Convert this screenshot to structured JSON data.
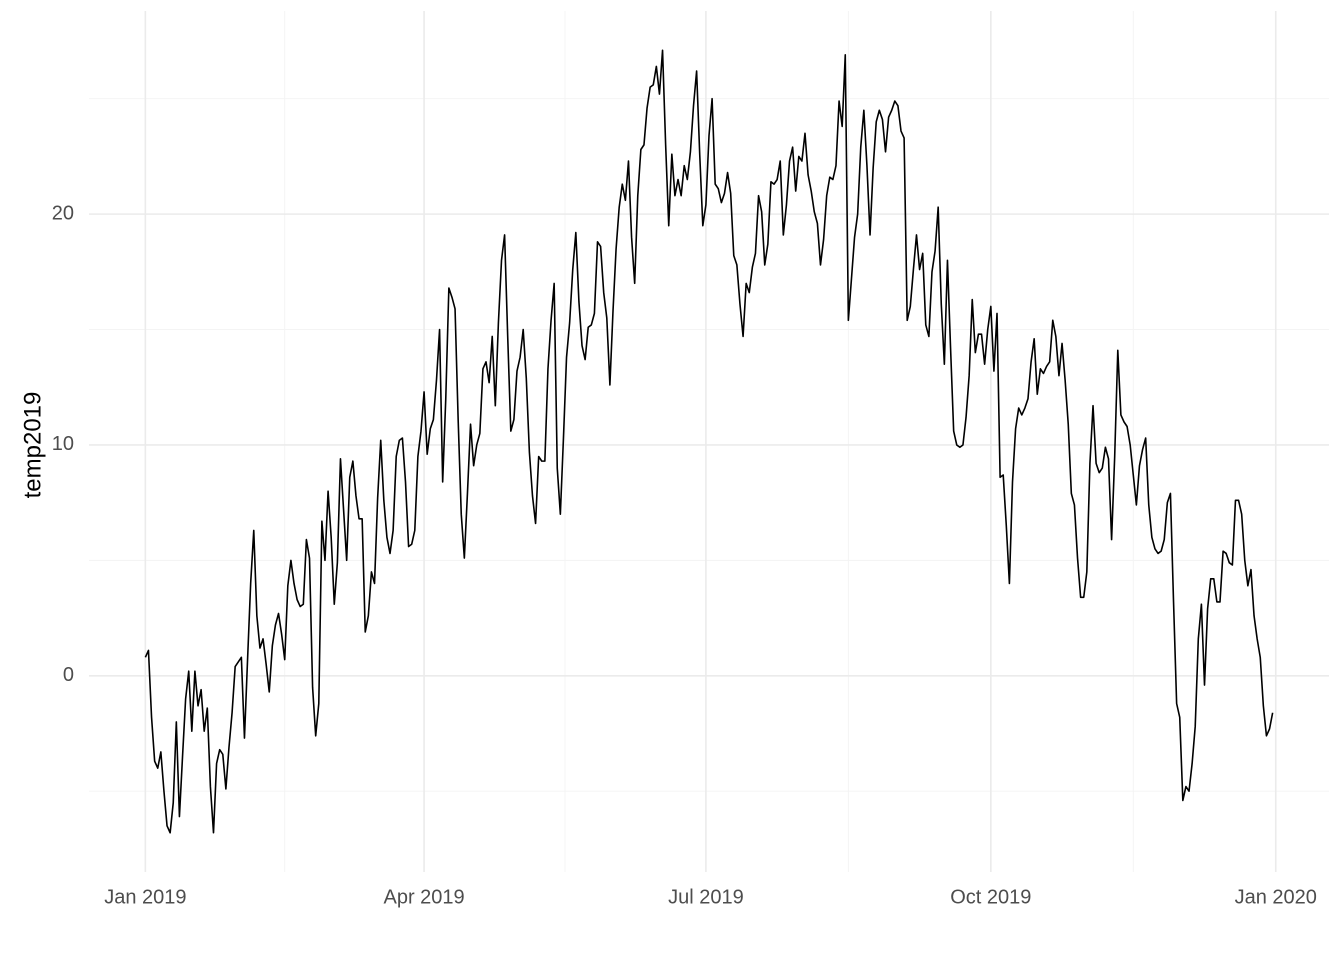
{
  "chart_data": {
    "type": "line",
    "ylabel": "temp2019",
    "color": "#000000",
    "grid": true,
    "xlim": [
      -18.2,
      382.2
    ],
    "ylim": [
      -8.5,
      28.8
    ],
    "xticks": [
      {
        "value": 0,
        "label": "Jan 2019"
      },
      {
        "value": 90,
        "label": "Apr 2019"
      },
      {
        "value": 181,
        "label": "Jul 2019"
      },
      {
        "value": 273,
        "label": "Oct 2019"
      },
      {
        "value": 365,
        "label": "Jan 2020"
      }
    ],
    "yticks": [
      0,
      10,
      20
    ],
    "x_minor_ticks": [
      45,
      135.5,
      227,
      319
    ],
    "y_minor_ticks": [
      -5,
      5,
      15,
      25
    ],
    "x": [
      0,
      1,
      2,
      3,
      4,
      5,
      6,
      7,
      8,
      9,
      10,
      11,
      12,
      13,
      14,
      15,
      16,
      17,
      18,
      19,
      20,
      21,
      22,
      23,
      24,
      25,
      26,
      27,
      28,
      29,
      30,
      31,
      32,
      33,
      34,
      35,
      36,
      37,
      38,
      39,
      40,
      41,
      42,
      43,
      44,
      45,
      46,
      47,
      48,
      49,
      50,
      51,
      52,
      53,
      54,
      55,
      56,
      57,
      58,
      59,
      60,
      61,
      62,
      63,
      64,
      65,
      66,
      67,
      68,
      69,
      70,
      71,
      72,
      73,
      74,
      75,
      76,
      77,
      78,
      79,
      80,
      81,
      82,
      83,
      84,
      85,
      86,
      87,
      88,
      89,
      90,
      91,
      92,
      93,
      94,
      95,
      96,
      97,
      98,
      99,
      100,
      101,
      102,
      103,
      104,
      105,
      106,
      107,
      108,
      109,
      110,
      111,
      112,
      113,
      114,
      115,
      116,
      117,
      118,
      119,
      120,
      121,
      122,
      123,
      124,
      125,
      126,
      127,
      128,
      129,
      130,
      131,
      132,
      133,
      134,
      135,
      136,
      137,
      138,
      139,
      140,
      141,
      142,
      143,
      144,
      145,
      146,
      147,
      148,
      149,
      150,
      151,
      152,
      153,
      154,
      155,
      156,
      157,
      158,
      159,
      160,
      161,
      162,
      163,
      164,
      165,
      166,
      167,
      168,
      169,
      170,
      171,
      172,
      173,
      174,
      175,
      176,
      177,
      178,
      179,
      180,
      181,
      182,
      183,
      184,
      185,
      186,
      187,
      188,
      189,
      190,
      191,
      192,
      193,
      194,
      195,
      196,
      197,
      198,
      199,
      200,
      201,
      202,
      203,
      204,
      205,
      206,
      207,
      208,
      209,
      210,
      211,
      212,
      213,
      214,
      215,
      216,
      217,
      218,
      219,
      220,
      221,
      222,
      223,
      224,
      225,
      226,
      227,
      228,
      229,
      230,
      231,
      232,
      233,
      234,
      235,
      236,
      237,
      238,
      239,
      240,
      241,
      242,
      243,
      244,
      245,
      246,
      247,
      248,
      249,
      250,
      251,
      252,
      253,
      254,
      255,
      256,
      257,
      258,
      259,
      260,
      261,
      262,
      263,
      264,
      265,
      266,
      267,
      268,
      269,
      270,
      271,
      272,
      273,
      274,
      275,
      276,
      277,
      278,
      279,
      280,
      281,
      282,
      283,
      284,
      285,
      286,
      287,
      288,
      289,
      290,
      291,
      292,
      293,
      294,
      295,
      296,
      297,
      298,
      299,
      300,
      301,
      302,
      303,
      304,
      305,
      306,
      307,
      308,
      309,
      310,
      311,
      312,
      313,
      314,
      315,
      316,
      317,
      318,
      319,
      320,
      321,
      322,
      323,
      324,
      325,
      326,
      327,
      328,
      329,
      330,
      331,
      332,
      333,
      334,
      335,
      336,
      337,
      338,
      339,
      340,
      341,
      342,
      343,
      344,
      345,
      346,
      347,
      348,
      349,
      350,
      351,
      352,
      353,
      354,
      355,
      356,
      357,
      358,
      359,
      360,
      361,
      362,
      363,
      364
    ],
    "values": [
      0.8,
      1.1,
      -1.8,
      -3.7,
      -4.0,
      -3.3,
      -5.0,
      -6.5,
      -6.8,
      -5.5,
      -2.0,
      -6.1,
      -3.5,
      -1.0,
      0.2,
      -2.4,
      0.2,
      -1.3,
      -0.6,
      -2.4,
      -1.4,
      -4.8,
      -6.8,
      -3.8,
      -3.2,
      -3.4,
      -4.9,
      -3.1,
      -1.6,
      0.4,
      0.6,
      0.8,
      -2.7,
      0.7,
      4.0,
      6.3,
      2.6,
      1.2,
      1.6,
      0.5,
      -0.7,
      1.3,
      2.2,
      2.7,
      1.8,
      0.7,
      3.9,
      5.0,
      4.0,
      3.3,
      3.0,
      3.1,
      5.9,
      5.1,
      -0.5,
      -2.6,
      -1.2,
      6.7,
      5.0,
      8.0,
      6.0,
      3.1,
      4.9,
      9.4,
      7.2,
      5.0,
      8.6,
      9.3,
      7.8,
      6.8,
      6.8,
      1.9,
      2.6,
      4.5,
      4.0,
      7.7,
      10.2,
      7.6,
      6.0,
      5.3,
      6.3,
      9.5,
      10.2,
      10.3,
      8.4,
      5.6,
      5.7,
      6.3,
      9.5,
      10.6,
      12.3,
      9.6,
      10.7,
      11.1,
      12.8,
      15.0,
      8.4,
      12.0,
      16.8,
      16.4,
      15.9,
      11.1,
      7.0,
      5.1,
      7.9,
      10.9,
      9.1,
      10.0,
      10.5,
      13.3,
      13.6,
      12.7,
      14.7,
      11.7,
      15.3,
      18.0,
      19.1,
      14.7,
      10.6,
      11.1,
      13.2,
      13.8,
      15.0,
      12.9,
      9.7,
      7.8,
      6.6,
      9.5,
      9.3,
      9.3,
      13.3,
      15.4,
      17.0,
      9.0,
      7.0,
      10.3,
      13.8,
      15.3,
      17.6,
      19.2,
      16.2,
      14.3,
      13.7,
      15.1,
      15.2,
      15.7,
      18.8,
      18.6,
      16.6,
      15.5,
      12.6,
      15.8,
      18.5,
      20.3,
      21.3,
      20.6,
      22.3,
      19.0,
      17.0,
      20.8,
      22.8,
      23.0,
      24.6,
      25.5,
      25.6,
      26.4,
      25.2,
      27.1,
      23.0,
      19.5,
      22.6,
      20.8,
      21.5,
      20.8,
      22.1,
      21.5,
      22.7,
      24.7,
      26.2,
      22.6,
      19.5,
      20.4,
      23.4,
      25.0,
      21.3,
      21.1,
      20.5,
      20.9,
      21.8,
      20.9,
      18.2,
      17.8,
      16.1,
      14.7,
      17.0,
      16.6,
      17.7,
      18.3,
      20.8,
      20.1,
      17.8,
      18.7,
      21.4,
      21.3,
      21.5,
      22.3,
      19.1,
      20.4,
      22.3,
      22.9,
      21.0,
      22.5,
      22.3,
      23.5,
      21.7,
      21.0,
      20.1,
      19.6,
      17.8,
      18.9,
      20.8,
      21.6,
      21.5,
      22.1,
      24.9,
      23.8,
      26.9,
      15.4,
      17.2,
      19.0,
      20.0,
      22.9,
      24.5,
      22.1,
      19.1,
      22.0,
      24.0,
      24.5,
      24.1,
      22.7,
      24.2,
      24.5,
      24.9,
      24.7,
      23.6,
      23.3,
      15.4,
      16.0,
      17.6,
      19.1,
      17.6,
      18.3,
      15.2,
      14.7,
      17.5,
      18.4,
      20.3,
      16.1,
      13.5,
      18.0,
      14.2,
      10.6,
      10.0,
      9.9,
      10.0,
      11.2,
      13.0,
      16.3,
      14.0,
      14.8,
      14.8,
      13.5,
      15.0,
      16.0,
      13.2,
      15.7,
      8.6,
      8.7,
      6.5,
      4.0,
      8.4,
      10.7,
      11.6,
      11.3,
      11.6,
      12.0,
      13.6,
      14.6,
      12.2,
      13.3,
      13.1,
      13.4,
      13.6,
      15.4,
      14.7,
      13.0,
      14.4,
      12.8,
      10.9,
      7.9,
      7.4,
      5.1,
      3.4,
      3.4,
      4.5,
      9.2,
      11.7,
      9.2,
      8.8,
      9.0,
      9.9,
      9.4,
      5.9,
      9.5,
      14.1,
      11.3,
      11.0,
      10.8,
      10.0,
      8.7,
      7.4,
      9.1,
      9.8,
      10.3,
      7.4,
      6.0,
      5.5,
      5.3,
      5.4,
      5.9,
      7.5,
      7.9,
      3.2,
      -1.2,
      -1.8,
      -5.4,
      -4.8,
      -5.0,
      -3.8,
      -2.2,
      1.6,
      3.1,
      -0.4,
      2.9,
      4.2,
      4.2,
      3.2,
      3.2,
      5.4,
      5.3,
      4.9,
      4.8,
      7.6,
      7.6,
      7.0,
      5.0,
      3.9,
      4.6,
      2.6,
      1.6,
      0.8,
      -1.3,
      -2.6,
      -2.3,
      -1.6
    ]
  }
}
